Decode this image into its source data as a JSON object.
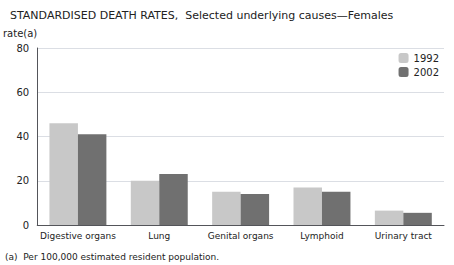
{
  "chart_data": {
    "type": "bar",
    "title": "STANDARDISED DEATH RATES,  Selected underlying causes—Females",
    "ylabel": "rate(a)",
    "footnote": "(a)  Per 100,000 estimated resident population.",
    "categories": [
      "Digestive organs",
      "Lung",
      "Genital organs",
      "Lymphoid",
      "Urinary tract"
    ],
    "series": [
      {
        "name": "1992",
        "color": "#c8c8c8",
        "values": [
          46,
          20,
          15,
          17,
          6.5
        ]
      },
      {
        "name": "2002",
        "color": "#707070",
        "values": [
          41,
          23,
          14,
          15,
          5.5
        ]
      }
    ],
    "ylim": [
      0,
      80
    ],
    "yticks": [
      0,
      20,
      40,
      60,
      80
    ],
    "grid": true,
    "legend": "upper right"
  }
}
